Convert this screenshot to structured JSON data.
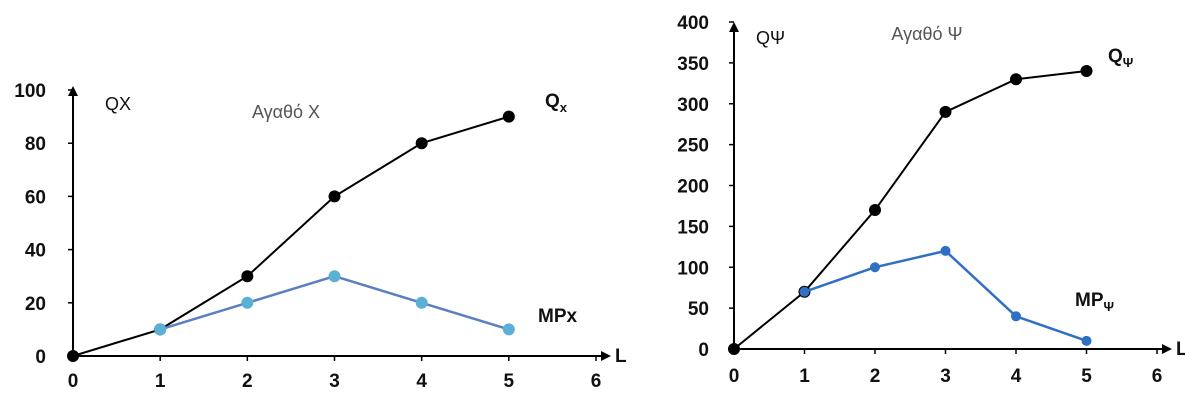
{
  "chart_data": [
    {
      "type": "line",
      "title": "Αγαθό Χ",
      "ylabel": "QX",
      "xlabel": "L",
      "x": [
        0,
        1,
        2,
        3,
        4,
        5
      ],
      "xlim": [
        0,
        6
      ],
      "ylim": [
        0,
        100
      ],
      "xticks": [
        "0",
        "1",
        "2",
        "3",
        "4",
        "5",
        "6"
      ],
      "yticks": [
        "0",
        "20",
        "40",
        "60",
        "80",
        "100"
      ],
      "series": [
        {
          "name": "Qx",
          "label_main": "Q",
          "label_sub": "x",
          "color": "#000000",
          "points": [
            [
              0,
              0
            ],
            [
              1,
              10
            ],
            [
              2,
              30
            ],
            [
              3,
              60
            ],
            [
              4,
              80
            ],
            [
              5,
              90
            ]
          ]
        },
        {
          "name": "MPx",
          "label_main": "MPx",
          "label_sub": "",
          "color": "#5b7fbf",
          "marker_color": "#5bb0d6",
          "points": [
            [
              1,
              10
            ],
            [
              2,
              20
            ],
            [
              3,
              30
            ],
            [
              4,
              20
            ],
            [
              5,
              10
            ]
          ]
        }
      ]
    },
    {
      "type": "line",
      "title": "Αγαθό Ψ",
      "ylabel": "QΨ",
      "xlabel": "L",
      "x": [
        0,
        1,
        2,
        3,
        4,
        5
      ],
      "xlim": [
        0,
        6
      ],
      "ylim": [
        0,
        400
      ],
      "xticks": [
        "0",
        "1",
        "2",
        "3",
        "4",
        "5",
        "6"
      ],
      "yticks": [
        "0",
        "50",
        "100",
        "150",
        "200",
        "250",
        "300",
        "350",
        "400"
      ],
      "series": [
        {
          "name": "QΨ",
          "label_main": "Q",
          "label_sub": "Ψ",
          "color": "#000000",
          "points": [
            [
              0,
              0
            ],
            [
              1,
              70
            ],
            [
              2,
              170
            ],
            [
              3,
              290
            ],
            [
              4,
              330
            ],
            [
              5,
              340
            ]
          ]
        },
        {
          "name": "MPΨ",
          "label_main": "MP",
          "label_sub": "Ψ",
          "color": "#2f6fc4",
          "marker_color": "#2f6fc4",
          "points": [
            [
              1,
              70
            ],
            [
              2,
              100
            ],
            [
              3,
              120
            ],
            [
              4,
              40
            ],
            [
              5,
              10
            ]
          ]
        }
      ]
    }
  ]
}
